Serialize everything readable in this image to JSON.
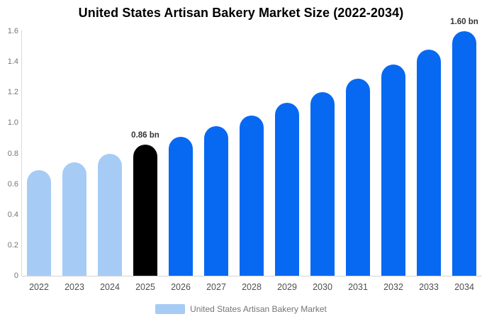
{
  "chart_data": {
    "type": "bar",
    "title": "United States Artisan Bakery Market Size (2022-2034)",
    "unit": "bn",
    "categories": [
      "2022",
      "2023",
      "2024",
      "2025",
      "2026",
      "2027",
      "2028",
      "2029",
      "2030",
      "2031",
      "2032",
      "2033",
      "2034"
    ],
    "values": [
      0.69,
      0.74,
      0.8,
      0.86,
      0.91,
      0.98,
      1.05,
      1.13,
      1.2,
      1.29,
      1.38,
      1.48,
      1.6
    ],
    "point_labels": [
      "",
      "",
      "",
      "0.86 bn",
      "",
      "",
      "",
      "",
      "",
      "",
      "",
      "",
      "1.60 bn"
    ],
    "bar_colors": [
      "#A6CCF5",
      "#A6CCF5",
      "#A6CCF5",
      "#000000",
      "#0769F2",
      "#0769F2",
      "#0769F2",
      "#0769F2",
      "#0769F2",
      "#0769F2",
      "#0769F2",
      "#0769F2",
      "#0769F2"
    ],
    "ylim": [
      0,
      1.6
    ],
    "ytick_labels": [
      "0",
      "0.2",
      "0.4",
      "0.6",
      "0.8",
      "1.0",
      "1.2",
      "1.4",
      "1.6"
    ],
    "grid": false,
    "legend": {
      "position": "bottom",
      "items": [
        {
          "label": "United States Artisan Bakery Market",
          "swatch_color": "#A6CCF5"
        }
      ]
    },
    "colors": {
      "historical": "#A6CCF5",
      "base_year": "#000000",
      "forecast": "#0769F2",
      "axis_line": "#d9d9d9",
      "tick_text": "#757575",
      "category_text": "#4f4f4f",
      "annotation_text": "#333333",
      "title_text": "#000000",
      "background": "#ffffff"
    }
  }
}
